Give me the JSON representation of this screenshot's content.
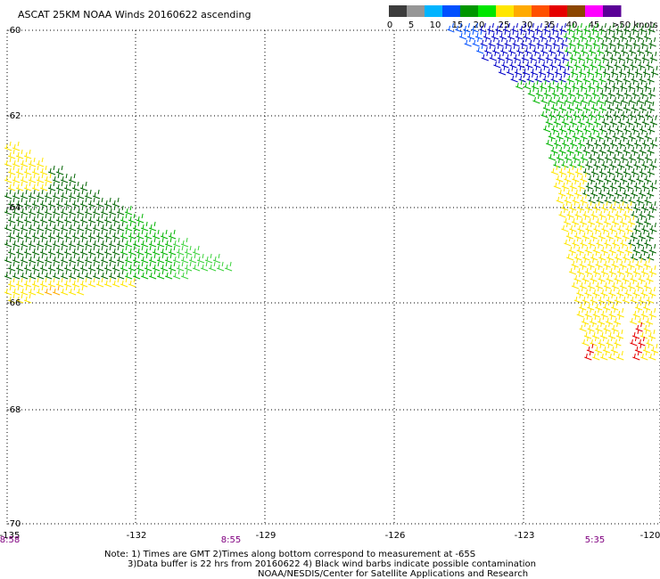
{
  "title": "ASCAT 25KM NOAA Winds 20160622 ascending",
  "legend": {
    "labels": [
      "0",
      "5",
      "10",
      "15",
      "20",
      "25",
      "30",
      "35",
      "40",
      "45",
      ">50 knots"
    ],
    "colors": [
      "#3c3c3c",
      "#969696",
      "#00b4ff",
      "#0050ff",
      "#009600",
      "#00e600",
      "#ffe600",
      "#ffaa00",
      "#ff5000",
      "#e60000",
      "#8c4600",
      "#ff00ff",
      "#5a0096"
    ]
  },
  "latitude_labels": [
    "-60",
    "-62",
    "-64",
    "-66",
    "-68",
    "-70"
  ],
  "longitude_labels": [
    "-135",
    "-132",
    "-129",
    "-126",
    "-123",
    "-120"
  ],
  "pass_times": [
    "8:58",
    "8:55",
    "5:35"
  ],
  "notes": [
    "Note: 1) Times are GMT 2)Times along bottom correspond to measurement at -65S",
    "3)Data buffer is 22 hrs from 20160622 4) Black wind barbs indicate possible contamination",
    "NOAA/NESDIS/Center for Satellite Applications and Research"
  ],
  "barb_colors": {
    "dark_green": "#006400",
    "green": "#00b400",
    "light_green": "#3cd23c",
    "yellow": "#ffe600",
    "orange": "#ffaa00",
    "red": "#e60000",
    "blue": "#0050ff",
    "dark_blue": "#0000c8"
  }
}
